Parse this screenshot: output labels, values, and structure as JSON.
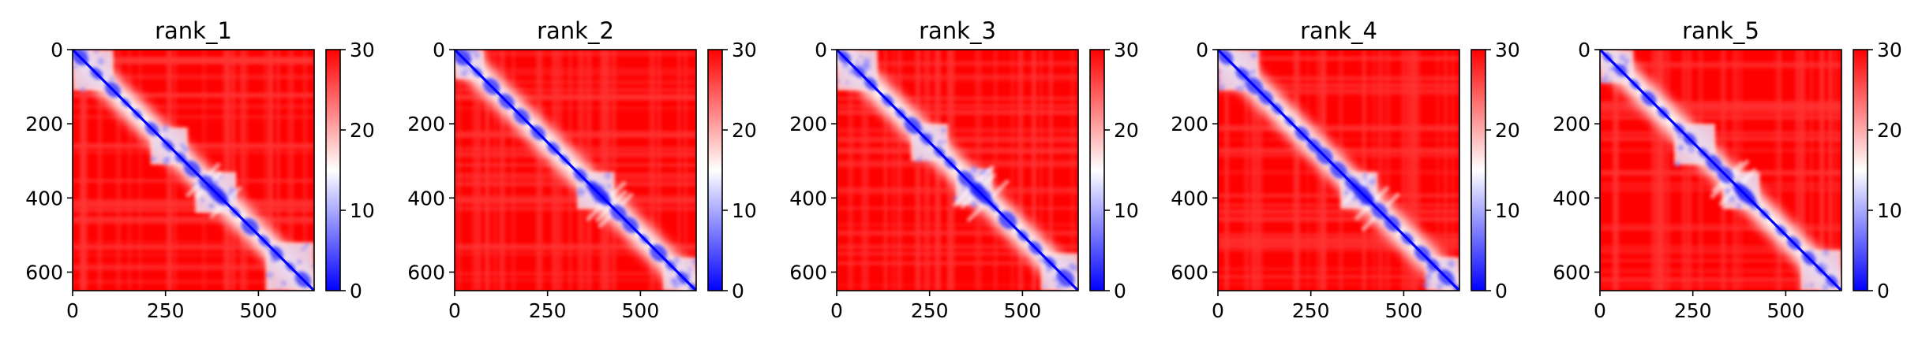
{
  "chart_data": [
    {
      "type": "heatmap",
      "title": "rank_1",
      "xlabel": "",
      "ylabel": "",
      "x_ticks": [
        0,
        250,
        500
      ],
      "y_ticks": [
        0,
        200,
        400,
        600
      ],
      "xlim": [
        0,
        650
      ],
      "ylim": [
        650,
        0
      ],
      "colorbar": {
        "cmap": [
          "#0000ff",
          "#ffffff",
          "#ff0000"
        ],
        "range": [
          0,
          30
        ],
        "ticks": [
          0,
          10,
          20,
          30
        ]
      },
      "diagonal_features": {
        "blocks": [
          [
            0,
            110
          ],
          [
            210,
            310
          ],
          [
            330,
            440
          ],
          [
            520,
            650
          ]
        ]
      }
    },
    {
      "type": "heatmap",
      "title": "rank_2",
      "xlabel": "",
      "ylabel": "",
      "x_ticks": [
        0,
        250,
        500
      ],
      "y_ticks": [
        0,
        200,
        400,
        600
      ],
      "xlim": [
        0,
        650
      ],
      "ylim": [
        650,
        0
      ],
      "colorbar": {
        "cmap": [
          "#0000ff",
          "#ffffff",
          "#ff0000"
        ],
        "range": [
          0,
          30
        ],
        "ticks": [
          0,
          10,
          20,
          30
        ]
      },
      "diagonal_features": {
        "blocks": [
          [
            0,
            80
          ],
          [
            330,
            430
          ],
          [
            560,
            650
          ]
        ]
      }
    },
    {
      "type": "heatmap",
      "title": "rank_3",
      "xlabel": "",
      "ylabel": "",
      "x_ticks": [
        0,
        250,
        500
      ],
      "y_ticks": [
        0,
        200,
        400,
        600
      ],
      "xlim": [
        0,
        650
      ],
      "ylim": [
        650,
        0
      ],
      "colorbar": {
        "cmap": [
          "#0000ff",
          "#ffffff",
          "#ff0000"
        ],
        "range": [
          0,
          30
        ],
        "ticks": [
          0,
          10,
          20,
          30
        ]
      },
      "diagonal_features": {
        "blocks": [
          [
            0,
            110
          ],
          [
            200,
            300
          ],
          [
            320,
            420
          ],
          [
            550,
            650
          ]
        ]
      }
    },
    {
      "type": "heatmap",
      "title": "rank_4",
      "xlabel": "",
      "ylabel": "",
      "x_ticks": [
        0,
        250,
        500
      ],
      "y_ticks": [
        0,
        200,
        400,
        600
      ],
      "xlim": [
        0,
        650
      ],
      "ylim": [
        650,
        0
      ],
      "colorbar": {
        "cmap": [
          "#0000ff",
          "#ffffff",
          "#ff0000"
        ],
        "range": [
          0,
          30
        ],
        "ticks": [
          0,
          10,
          20,
          30
        ]
      },
      "diagonal_features": {
        "blocks": [
          [
            0,
            110
          ],
          [
            330,
            430
          ],
          [
            560,
            650
          ]
        ]
      }
    },
    {
      "type": "heatmap",
      "title": "rank_5",
      "xlabel": "",
      "ylabel": "",
      "x_ticks": [
        0,
        250,
        500
      ],
      "y_ticks": [
        0,
        200,
        400,
        600
      ],
      "xlim": [
        0,
        650
      ],
      "ylim": [
        650,
        0
      ],
      "colorbar": {
        "cmap": [
          "#0000ff",
          "#ffffff",
          "#ff0000"
        ],
        "range": [
          0,
          30
        ],
        "ticks": [
          0,
          10,
          20,
          30
        ]
      },
      "diagonal_features": {
        "blocks": [
          [
            0,
            90
          ],
          [
            200,
            310
          ],
          [
            330,
            430
          ],
          [
            540,
            650
          ]
        ]
      }
    }
  ]
}
